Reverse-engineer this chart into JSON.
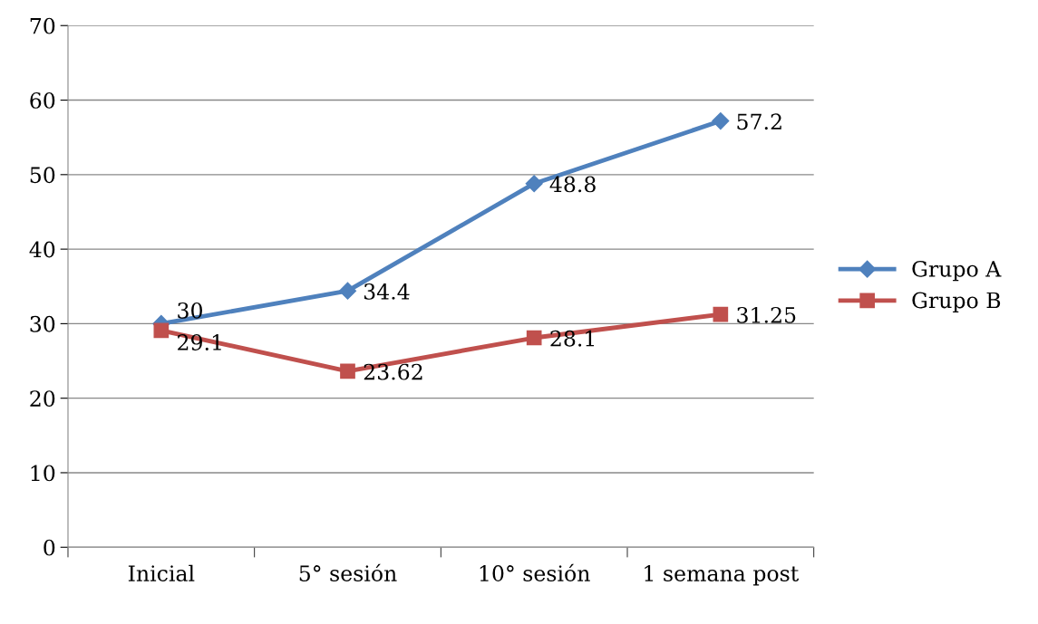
{
  "chart_data": {
    "type": "line",
    "categories": [
      "Inicial",
      "5° sesión",
      "10° sesión",
      "1 semana post"
    ],
    "series": [
      {
        "name": "Grupo A",
        "color": "#4f81bd",
        "marker": "diamond",
        "values": [
          30,
          34.4,
          48.8,
          57.2
        ]
      },
      {
        "name": "Grupo B",
        "color": "#c0504d",
        "marker": "square",
        "values": [
          29.1,
          23.62,
          28.1,
          31.25
        ]
      }
    ],
    "ylim": [
      0,
      70
    ],
    "yticks": [
      0,
      10,
      20,
      30,
      40,
      50,
      60,
      70
    ],
    "grid": "y",
    "legend": "right",
    "data_labels": true,
    "line_style": "solid"
  }
}
